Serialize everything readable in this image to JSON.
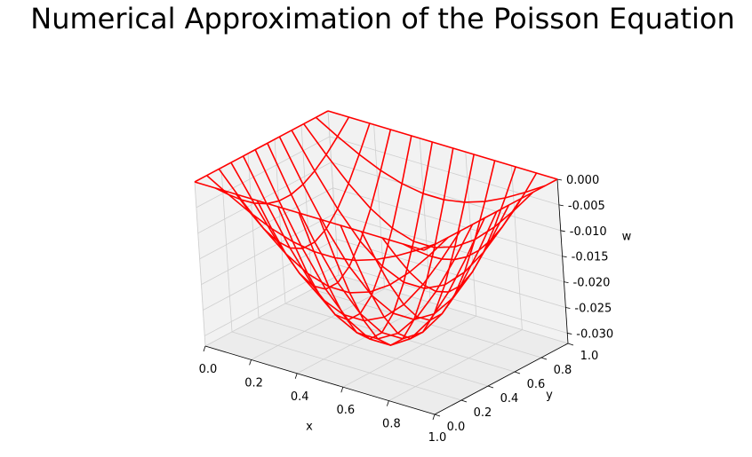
{
  "chart_data": {
    "type": "wireframe_3d",
    "title": "Numerical Approximation of the Poisson Equation",
    "xlabel": "x",
    "ylabel": "y",
    "zlabel": "w",
    "xlim": [
      0.0,
      1.0
    ],
    "ylim": [
      0.0,
      1.0
    ],
    "zlim": [
      -0.032,
      0.0
    ],
    "x_ticks": [
      "0.0",
      "0.2",
      "0.4",
      "0.6",
      "0.8",
      "1.0"
    ],
    "y_ticks": [
      "0.0",
      "0.2",
      "0.4",
      "0.6",
      "0.8",
      "1.0"
    ],
    "z_ticks": [
      "0.000",
      "-0.005",
      "-0.010",
      "-0.015",
      "-0.020",
      "-0.025",
      "-0.030"
    ],
    "grid_points": 12,
    "min_value": -0.0315,
    "boundary_value": 0.0,
    "line_color": "#ff0000",
    "pane_color": "#f2f2f2",
    "grid": true
  }
}
